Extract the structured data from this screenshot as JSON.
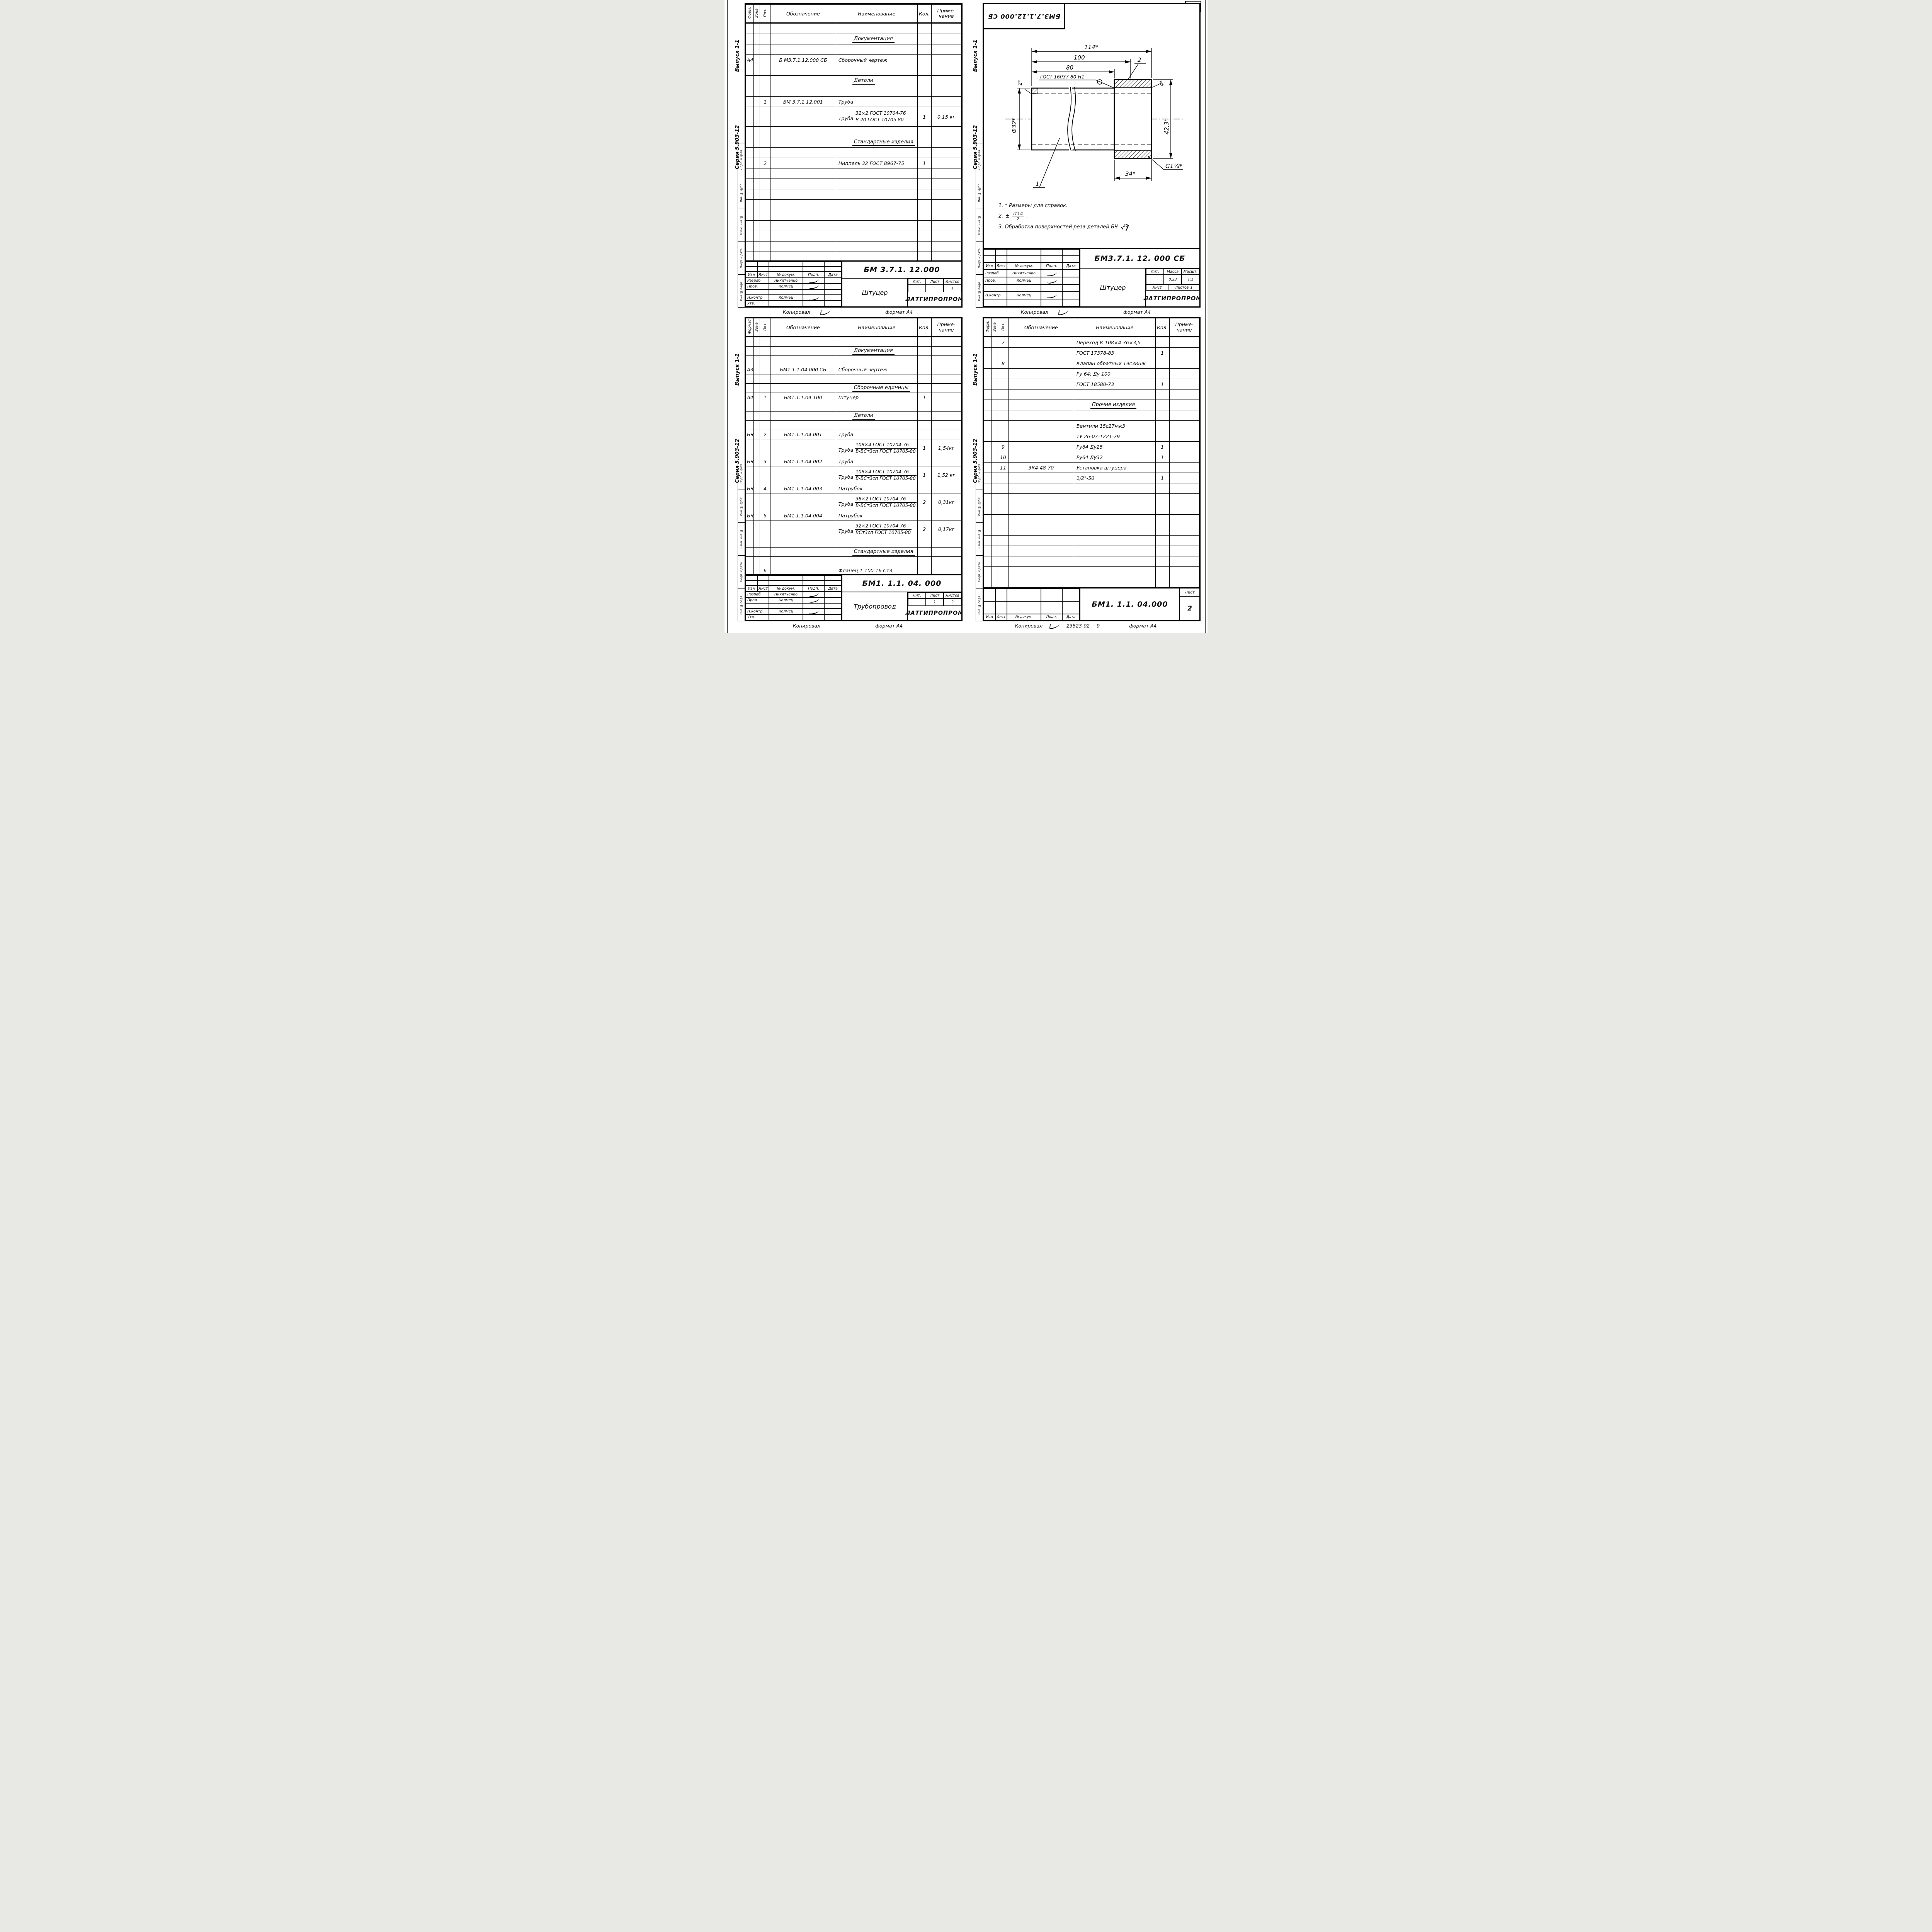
{
  "page": {
    "number": "8"
  },
  "labels": {
    "copied": "Копировал",
    "format": "формат А4",
    "spec_header": {
      "zona": "Зона",
      "poz": "Поз.",
      "design": "Обозначение",
      "name": "Наименование",
      "qty": "Кол.",
      "note1": "Приме-",
      "note2": "чание"
    },
    "tb": {
      "izm": "Изм",
      "list": "Лист",
      "ndok": "№ докум.",
      "podp": "Подп.",
      "data": "Дата",
      "razrab": "Разраб.",
      "prov": "Пров.",
      "nkontr": "Н.контр.",
      "utv": "Утв.",
      "lit": "Лит.",
      "massa": "Масса",
      "massht": "Масшт.",
      "listov": "Листов"
    },
    "margin": {
      "vypusk": "Выпуск 1-1",
      "seriya": "Серия 5.903-12",
      "boxes": [
        "Подп. и дата",
        "Инв.№ дубл.",
        "Взам. инв.№",
        "Подп. и дата",
        "Инв.№ подл."
      ]
    }
  },
  "sheet_tl": {
    "format_col": "Форм.",
    "rows": [
      {
        "t": "e"
      },
      {
        "t": "s",
        "name": "Документация"
      },
      {
        "t": "e"
      },
      {
        "t": "i",
        "f": "А4",
        "d": "Б М3.7.1.12.000 СБ",
        "n": "Сборочный чертеж"
      },
      {
        "t": "e"
      },
      {
        "t": "s",
        "name": "Детали"
      },
      {
        "t": "e"
      },
      {
        "t": "i",
        "p": "1",
        "d": "БМ 3.7.1.12.001",
        "n": "Труба"
      },
      {
        "t": "f",
        "pre": "Труба",
        "top": "32×2 ГОСТ 10704-76",
        "bot": "В 20 ГОСТ 10705-80",
        "q": "1",
        "note": "0,15 кг"
      },
      {
        "t": "e"
      },
      {
        "t": "s",
        "name": "Стандартные изделия"
      },
      {
        "t": "e"
      },
      {
        "t": "i",
        "p": "2",
        "n": "Ниппель 32 ГОСТ 8967-75",
        "q": "1"
      },
      {
        "t": "e"
      },
      {
        "t": "e"
      },
      {
        "t": "e"
      },
      {
        "t": "e"
      },
      {
        "t": "e"
      },
      {
        "t": "e"
      },
      {
        "t": "e"
      },
      {
        "t": "e"
      },
      {
        "t": "e"
      },
      {
        "t": "e"
      }
    ],
    "tb": {
      "doc": "БМ 3.7.1. 12.000",
      "name": "Штуцер",
      "razrab": "Никитченко",
      "prov": "Колмец",
      "nkontr": "Колмец",
      "listov": "1",
      "org": "ЛАТГИПРОПРОМ"
    }
  },
  "sheet_tr": {
    "stamp": "БМ3.7.1.12.000 СБ",
    "dims": {
      "d114": "114*",
      "d100": "100",
      "d80": "80",
      "weld": "ГОСТ 16037-80-Н1",
      "d2": "2*",
      "d32": "Ф32*",
      "d4": "4*",
      "d423": "42,3*",
      "d34": "34*",
      "g114": "G1¼*",
      "p1": "1",
      "p2": "2"
    },
    "notes": {
      "n1": "1. * Размеры для справок.",
      "n2pre": "2.",
      "n2pm": "±",
      "n2top": "IT14",
      "n2bot": "2",
      "n2end": ".",
      "n3": "3. Обработка поверхностей реза деталей БЧ",
      "n3val": "25"
    },
    "tb": {
      "doc": "БМ3.7.1. 12. 000 СБ",
      "name": "Штуцер",
      "razrab": "Никитченко",
      "prov": "Колмец",
      "nkontr": "Колмец",
      "massa": "0,23",
      "massht": "1:1",
      "listov": "1",
      "org": "ЛАТГИПРОПРОМ"
    }
  },
  "sheet_bl": {
    "format_col": "Формат",
    "rows": [
      {
        "t": "e"
      },
      {
        "t": "s",
        "name": "Документация"
      },
      {
        "t": "e"
      },
      {
        "t": "i",
        "f": "А3",
        "d": "БМ1.1.1.04.000 СБ",
        "n": "Сборочный чертеж"
      },
      {
        "t": "e"
      },
      {
        "t": "s",
        "name": "Сборочные единицы"
      },
      {
        "t": "i",
        "f": "А4",
        "p": "1",
        "d": "БМ1.1.1.04.100",
        "n": "Штуцер",
        "q": "1"
      },
      {
        "t": "e"
      },
      {
        "t": "s",
        "name": "Детали"
      },
      {
        "t": "e"
      },
      {
        "t": "i",
        "f": "БЧ",
        "p": "2",
        "d": "БМ1.1.1.04.001",
        "n": "Труба"
      },
      {
        "t": "f",
        "pre": "Труба",
        "top": "108×4 ГОСТ 10704-76",
        "bot": "В-ВСт3сп ГОСТ 10705-80",
        "q": "1",
        "note": "1,54кг"
      },
      {
        "t": "i",
        "f": "БЧ",
        "p": "3",
        "d": "БМ1.1.1.04.002",
        "n": "Труба"
      },
      {
        "t": "f",
        "pre": "Труба",
        "top": "108×4 ГОСТ 10704-76",
        "bot": "В-ВСт3сп ГОСТ 10705-80",
        "q": "1",
        "note": "1,52 кг"
      },
      {
        "t": "i",
        "f": "БЧ",
        "p": "4",
        "d": "БМ1.1.1.04.003",
        "n": "Патрубок"
      },
      {
        "t": "f",
        "pre": "Труба",
        "top": "38×2 ГОСТ 10704-76",
        "bot": "В-ВСт3сп ГОСТ 10705-80",
        "q": "2",
        "note": "0,31кг"
      },
      {
        "t": "i",
        "f": "БЧ",
        "p": "5",
        "d": "БМ1.1.1.04.004",
        "n": "Патрубок"
      },
      {
        "t": "f",
        "pre": "Труба",
        "top": "32×2 ГОСТ 10704-76",
        "bot": "ВСт3сп ГОСТ 10705-80",
        "q": "2",
        "note": "0,17кг"
      },
      {
        "t": "e"
      },
      {
        "t": "s",
        "name": "Стандартные изделия"
      },
      {
        "t": "e"
      },
      {
        "t": "i",
        "p": "6",
        "n": "Фланец 1-100-16  Ст3"
      },
      {
        "t": "x",
        "n": "ГОСТ 12821-80",
        "q": "1"
      }
    ],
    "tb": {
      "doc": "БМ1. 1.1. 04. 000",
      "name": "Трубопровод",
      "razrab": "Никитченко",
      "prov": "Колмец",
      "nkontr": "Колмец",
      "list": "1",
      "listov": "2",
      "org": "ЛАТГИПРОПРОМ"
    }
  },
  "sheet_br": {
    "format_col": "Форм.",
    "rows": [
      {
        "t": "i",
        "p": "7",
        "n": "Переход К 108×4-76×3,5"
      },
      {
        "t": "x",
        "n": "ГОСТ 17378-83",
        "q": "1"
      },
      {
        "t": "i",
        "p": "8",
        "n": "Клапан обратный 19с38нж"
      },
      {
        "t": "x",
        "n": "Ру 64; Ду 100"
      },
      {
        "t": "x",
        "n": "ГОСТ 18580-73",
        "q": "1"
      },
      {
        "t": "e"
      },
      {
        "t": "s",
        "name": "Прочие изделия"
      },
      {
        "t": "e"
      },
      {
        "t": "x",
        "n": "Вентили 15с27нж3"
      },
      {
        "t": "x",
        "n": "ТУ 26-07-1221-79"
      },
      {
        "t": "i",
        "p": "9",
        "n": "Ру64  Ду25",
        "q": "1"
      },
      {
        "t": "i",
        "p": "10",
        "n": "Ру64  Ду32",
        "q": "1"
      },
      {
        "t": "i",
        "p": "11",
        "d": "3К4-48-70",
        "n": "Установка штуцера"
      },
      {
        "t": "x",
        "n": "1/2\"-50",
        "q": "1"
      },
      {
        "t": "e"
      },
      {
        "t": "e"
      },
      {
        "t": "e"
      },
      {
        "t": "e"
      },
      {
        "t": "e"
      },
      {
        "t": "e"
      },
      {
        "t": "e"
      },
      {
        "t": "e"
      },
      {
        "t": "e"
      },
      {
        "t": "e"
      },
      {
        "t": "e"
      }
    ],
    "tb": {
      "doc": "БМ1. 1.1. 04.000",
      "list": "2"
    },
    "footer_code": "23523-02",
    "footer_num": "9"
  }
}
